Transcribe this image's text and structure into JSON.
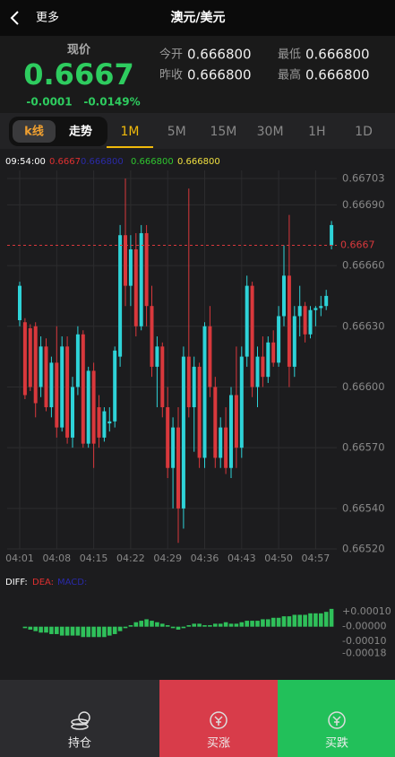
{
  "header": {
    "back": "更多",
    "title": "澳元/美元"
  },
  "quote": {
    "label": "现价",
    "price": "0.6667",
    "change": "-0.0001",
    "change_pct": "-0.0149%",
    "stats": [
      {
        "label": "今开",
        "value": "0.666800"
      },
      {
        "label": "最低",
        "value": "0.666800"
      },
      {
        "label": "昨收",
        "value": "0.666800"
      },
      {
        "label": "最高",
        "value": "0.666800"
      }
    ]
  },
  "tabs": {
    "modes": [
      "k线",
      "走势"
    ],
    "active_mode": 0,
    "intervals": [
      "1M",
      "5M",
      "15M",
      "30M",
      "1H",
      "1D"
    ],
    "active_interval": 0
  },
  "chart_data": {
    "type": "candlestick",
    "up_color": "#2ed3d8",
    "down_color": "#d9383c",
    "grid": true,
    "legend": [
      {
        "text": "09:54:00",
        "color": "#ffffff"
      },
      {
        "text": "0.6667",
        "color": "#e03030"
      },
      {
        "text": "0.666800",
        "color": "#2a2aa8"
      },
      {
        "text": "0.666800",
        "color": "#2fc62f"
      },
      {
        "text": "0.666800",
        "color": "#f0e040"
      }
    ],
    "last_price": 0.6667,
    "categories": [
      "04:01",
      null,
      null,
      null,
      null,
      null,
      null,
      "04:08",
      null,
      null,
      null,
      null,
      null,
      null,
      "04:15",
      null,
      null,
      null,
      null,
      null,
      null,
      "04:22",
      null,
      null,
      null,
      null,
      null,
      null,
      "04:29",
      null,
      null,
      null,
      null,
      null,
      null,
      "04:36",
      null,
      null,
      null,
      null,
      null,
      null,
      "04:43",
      null,
      null,
      null,
      null,
      null,
      null,
      "04:50",
      null,
      null,
      null,
      null,
      null,
      null,
      "04:57",
      null,
      null,
      null
    ],
    "open": [
      0.66633,
      0.66632,
      0.66629,
      0.6663,
      0.666,
      0.6662,
      0.6659,
      0.66612,
      0.6658,
      0.6662,
      0.66575,
      0.666,
      0.66626,
      0.66572,
      0.66608,
      0.6659,
      0.66575,
      0.66582,
      0.66583,
      0.66615,
      0.66675,
      0.6665,
      0.66668,
      0.6663,
      0.66676,
      0.6664,
      0.6661,
      0.6662,
      0.6659,
      0.6656,
      0.6658,
      0.6654,
      0.66615,
      0.6659,
      0.6661,
      0.66565,
      0.6663,
      0.666,
      0.66565,
      0.6658,
      0.6656,
      0.66596,
      0.6657,
      0.66615,
      0.6665,
      0.666,
      0.66615,
      0.66605,
      0.66622,
      0.66612,
      0.66635,
      0.66655,
      0.6661,
      0.66635,
      0.6664,
      0.66626,
      0.66638,
      0.66639,
      0.6664,
      0.6667
    ],
    "high": [
      0.66652,
      0.66634,
      0.66631,
      0.66632,
      0.66625,
      0.66624,
      0.66615,
      0.6663,
      0.66625,
      0.66625,
      0.66605,
      0.6663,
      0.66628,
      0.6661,
      0.66612,
      0.66596,
      0.6659,
      0.6659,
      0.6662,
      0.6668,
      0.66703,
      0.66675,
      0.66676,
      0.6668,
      0.6668,
      0.6665,
      0.66625,
      0.66622,
      0.666,
      0.66585,
      0.6659,
      0.6662,
      0.66698,
      0.66615,
      0.66612,
      0.66632,
      0.6664,
      0.66605,
      0.66585,
      0.6659,
      0.666,
      0.6662,
      0.6662,
      0.66655,
      0.66652,
      0.6662,
      0.66625,
      0.66625,
      0.66628,
      0.6664,
      0.6667,
      0.66685,
      0.6664,
      0.6665,
      0.66642,
      0.6664,
      0.6664,
      0.66645,
      0.66648,
      0.66682
    ],
    "low": [
      0.6663,
      0.66594,
      0.66598,
      0.66585,
      0.66595,
      0.66588,
      0.66585,
      0.66575,
      0.66578,
      0.66572,
      0.6657,
      0.66596,
      0.6657,
      0.6657,
      0.6656,
      0.6657,
      0.66573,
      0.66578,
      0.6658,
      0.6661,
      0.6664,
      0.6664,
      0.66625,
      0.66628,
      0.6663,
      0.66605,
      0.6659,
      0.66585,
      0.66555,
      0.6654,
      0.66523,
      0.6653,
      0.66585,
      0.66568,
      0.6656,
      0.6656,
      0.66595,
      0.6656,
      0.6656,
      0.66557,
      0.66555,
      0.6656,
      0.66565,
      0.6661,
      0.66595,
      0.6659,
      0.666,
      0.66602,
      0.6661,
      0.6661,
      0.6663,
      0.666,
      0.66605,
      0.66625,
      0.66622,
      0.66624,
      0.6663,
      0.66635,
      0.66638,
      0.66668
    ],
    "close": [
      0.6665,
      0.66596,
      0.666,
      0.66592,
      0.6662,
      0.6659,
      0.66612,
      0.6658,
      0.6662,
      0.66575,
      0.666,
      0.66626,
      0.66572,
      0.66608,
      0.66572,
      0.66575,
      0.66588,
      0.66583,
      0.66618,
      0.66675,
      0.6665,
      0.66668,
      0.6663,
      0.66676,
      0.6664,
      0.6661,
      0.6662,
      0.6659,
      0.6656,
      0.6658,
      0.6654,
      0.66615,
      0.6659,
      0.6661,
      0.66565,
      0.6663,
      0.666,
      0.66565,
      0.6658,
      0.6656,
      0.66596,
      0.6657,
      0.66615,
      0.6665,
      0.666,
      0.66615,
      0.66605,
      0.66622,
      0.66612,
      0.66635,
      0.66655,
      0.6661,
      0.66635,
      0.6664,
      0.66626,
      0.66638,
      0.66639,
      0.6664,
      0.66645,
      0.6668
    ],
    "ylim": [
      0.6652,
      0.66707
    ],
    "yticks": [
      0.66703,
      {
        "value": 0.6669,
        "label": "0.66690"
      },
      {
        "value": 0.6666,
        "label": "0.66660"
      },
      {
        "value": 0.6663,
        "label": "0.66630"
      },
      {
        "value": 0.666,
        "label": "0.66600"
      },
      {
        "value": 0.6657,
        "label": "0.66570"
      },
      {
        "value": 0.6654,
        "label": "0.66540"
      },
      {
        "value": 0.6652,
        "label": "0.66520"
      }
    ],
    "macd": {
      "color": "#2fc05a",
      "legend": [
        {
          "text": "DIFF:",
          "color": "#ffffff"
        },
        {
          "text": "DEA:",
          "color": "#e03030"
        },
        {
          "text": "MACD:",
          "color": "#2a2aa8"
        }
      ],
      "values": [
        0,
        -1e-05,
        -2e-05,
        -3e-05,
        -4e-05,
        -4e-05,
        -5e-05,
        -5e-05,
        -6e-05,
        -6e-05,
        -6e-05,
        -6e-05,
        -7e-05,
        -7e-05,
        -7e-05,
        -7e-05,
        -7e-05,
        -6e-05,
        -5e-05,
        -3e-05,
        -1e-05,
        1e-05,
        3e-05,
        4e-05,
        5e-05,
        4e-05,
        3e-05,
        2e-05,
        1e-05,
        -1e-05,
        -2e-05,
        -1e-05,
        1e-05,
        2e-05,
        2e-05,
        1e-05,
        1e-05,
        2e-05,
        2e-05,
        3e-05,
        2e-05,
        2e-05,
        3e-05,
        4e-05,
        4e-05,
        4e-05,
        5e-05,
        5e-05,
        6e-05,
        6e-05,
        7e-05,
        7e-05,
        8e-05,
        8e-05,
        8e-05,
        9e-05,
        9e-05,
        9e-05,
        0.0001,
        0.00012
      ],
      "ylim": [
        -0.00025,
        0.00021
      ],
      "yticks": [
        {
          "value": 0.0001,
          "label": "+0.00010"
        },
        {
          "value": 0,
          "label": "-0.00000"
        },
        {
          "value": -0.0001,
          "label": "-0.00010"
        },
        {
          "value": -0.00018,
          "label": "-0.00018"
        }
      ]
    }
  },
  "nav": [
    "持仓",
    "买涨",
    "买跌"
  ]
}
